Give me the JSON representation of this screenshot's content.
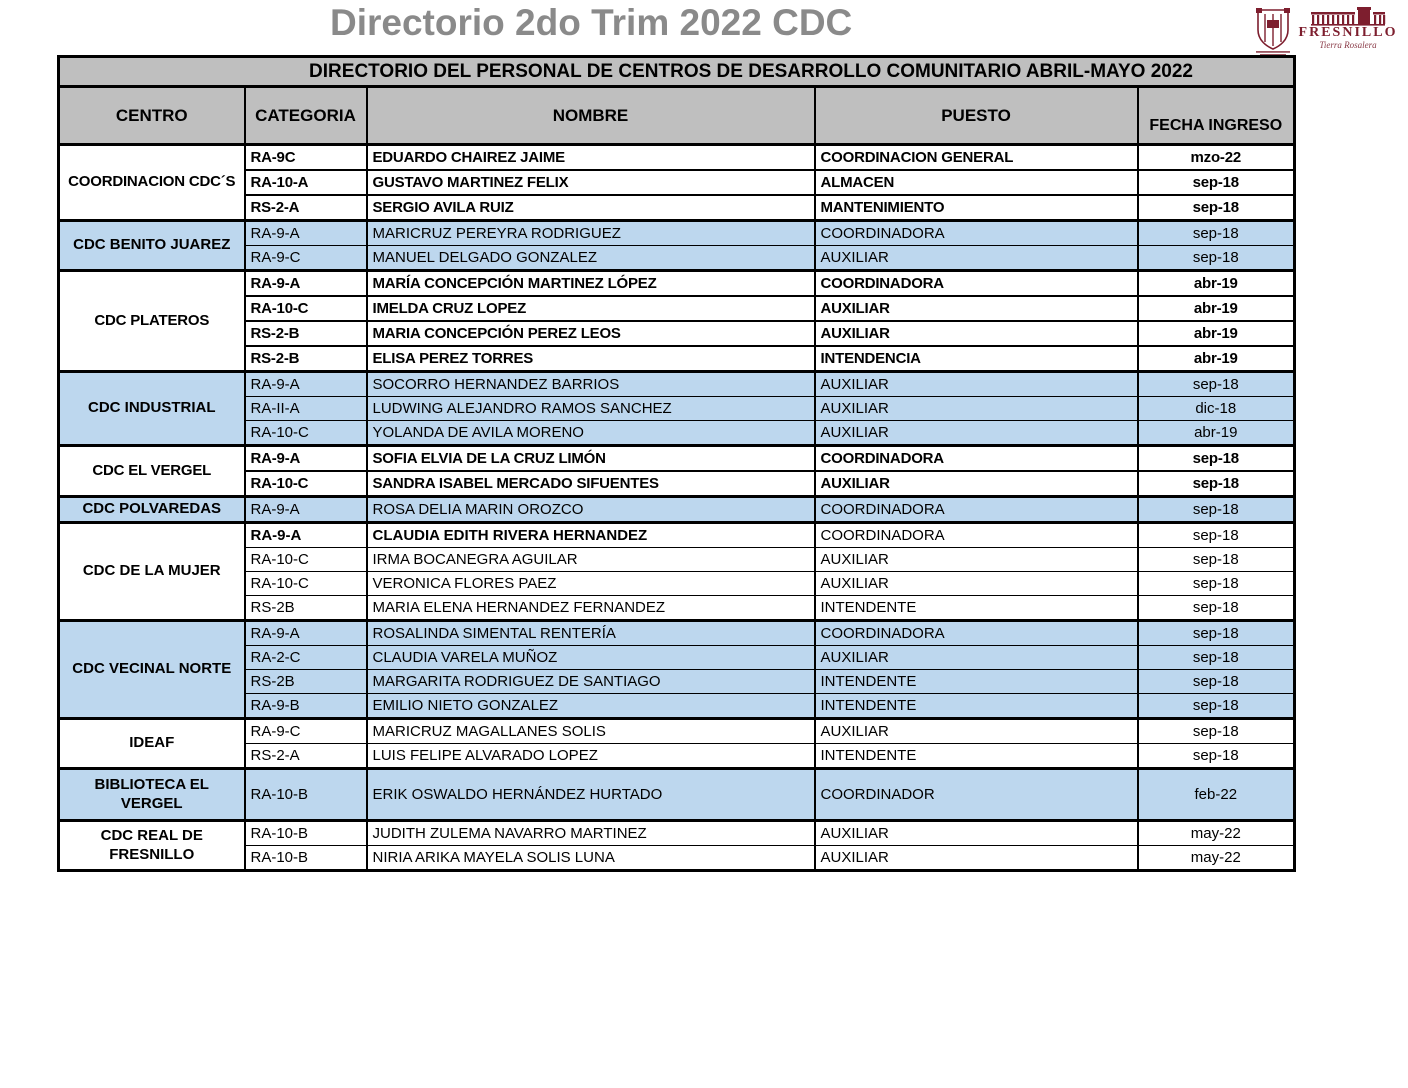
{
  "title": "Directorio 2do Trim 2022 CDC",
  "banner": "DIRECTORIO DEL PERSONAL DE CENTROS DE DESARROLLO COMUNITARIO ABRIL-MAYO 2022",
  "columns": [
    "CENTRO",
    "CATEGORIA",
    "NOMBRE",
    "PUESTO",
    "FECHA INGRESO"
  ],
  "colors": {
    "row_highlight": "#bdd7ee",
    "header_gray": "#bfbfbf",
    "title_gray": "#8a8a8a",
    "logo_maroon": "#7d1e2e"
  },
  "logos": {
    "crest_icon": "crest-shield",
    "fresnillo_wordmark": "FRESNILLO",
    "fresnillo_tagline": "Tierra Rosalera"
  },
  "groups": [
    {
      "center": "COORDINACION CDC´S",
      "bg": "white",
      "weight": "bold",
      "rows": [
        {
          "categoria": "RA-9C",
          "nombre": "EDUARDO CHAIREZ JAIME",
          "puesto": "COORDINACION GENERAL",
          "fecha": "mzo-22"
        },
        {
          "categoria": "RA-10-A",
          "nombre": "GUSTAVO MARTINEZ FELIX",
          "puesto": "ALMACEN",
          "fecha": "sep-18"
        },
        {
          "categoria": "RS-2-A",
          "nombre": "SERGIO AVILA RUIZ",
          "puesto": "MANTENIMIENTO",
          "fecha": "sep-18"
        }
      ]
    },
    {
      "center": "CDC BENITO JUAREZ",
      "bg": "blue",
      "weight": "regular",
      "rows": [
        {
          "categoria": "RA-9-A",
          "nombre": "MARICRUZ PEREYRA RODRIGUEZ",
          "puesto": "COORDINADORA",
          "fecha": "sep-18"
        },
        {
          "categoria": "RA-9-C",
          "nombre": "MANUEL DELGADO GONZALEZ",
          "puesto": "AUXILIAR",
          "fecha": "sep-18"
        }
      ]
    },
    {
      "center": "CDC PLATEROS",
      "bg": "white",
      "weight": "bold",
      "rows": [
        {
          "categoria": "RA-9-A",
          "nombre": "MARÍA CONCEPCIÓN MARTINEZ LÓPEZ",
          "puesto": "COORDINADORA",
          "fecha": "abr-19"
        },
        {
          "categoria": "RA-10-C",
          "nombre": "IMELDA CRUZ LOPEZ",
          "puesto": "AUXILIAR",
          "fecha": "abr-19"
        },
        {
          "categoria": "RS-2-B",
          "nombre": "MARIA CONCEPCIÓN PEREZ LEOS",
          "puesto": "AUXILIAR",
          "fecha": "abr-19"
        },
        {
          "categoria": "RS-2-B",
          "nombre": "ELISA PEREZ TORRES",
          "puesto": "INTENDENCIA",
          "fecha": "abr-19"
        }
      ]
    },
    {
      "center": "CDC INDUSTRIAL",
      "bg": "blue",
      "weight": "regular",
      "rows": [
        {
          "categoria": "RA-9-A",
          "nombre": "SOCORRO HERNANDEZ BARRIOS",
          "puesto": "AUXILIAR",
          "fecha": "sep-18"
        },
        {
          "categoria": "RA-II-A",
          "nombre": "LUDWING ALEJANDRO RAMOS SANCHEZ",
          "puesto": "AUXILIAR",
          "fecha": "dic-18"
        },
        {
          "categoria": "RA-10-C",
          "nombre": "YOLANDA DE AVILA MORENO",
          "puesto": "AUXILIAR",
          "fecha": "abr-19"
        }
      ]
    },
    {
      "center": "CDC EL VERGEL",
      "bg": "white",
      "weight": "bold",
      "rows": [
        {
          "categoria": "RA-9-A",
          "nombre": "SOFIA ELVIA DE LA CRUZ LIMÓN",
          "puesto": "COORDINADORA",
          "fecha": "sep-18"
        },
        {
          "categoria": "RA-10-C",
          "nombre": "SANDRA ISABEL MERCADO SIFUENTES",
          "puesto": "AUXILIAR",
          "fecha": "sep-18"
        }
      ]
    },
    {
      "center": "CDC POLVAREDAS",
      "bg": "blue",
      "weight": "regular",
      "rows": [
        {
          "categoria": "RA-9-A",
          "nombre": "ROSA DELIA MARIN OROZCO",
          "puesto": "COORDINADORA",
          "fecha": "sep-18"
        }
      ]
    },
    {
      "center": "CDC DE LA MUJER",
      "bg": "white",
      "weight": "regular",
      "rows": [
        {
          "categoria": "RA-9-A",
          "nombre": "CLAUDIA EDITH RIVERA HERNANDEZ",
          "puesto": "COORDINADORA",
          "fecha": "sep-18",
          "emphasis": "name"
        },
        {
          "categoria": "RA-10-C",
          "nombre": "IRMA BOCANEGRA AGUILAR",
          "puesto": "AUXILIAR",
          "fecha": "sep-18"
        },
        {
          "categoria": "RA-10-C",
          "nombre": "VERONICA FLORES PAEZ",
          "puesto": "AUXILIAR",
          "fecha": "sep-18"
        },
        {
          "categoria": "RS-2B",
          "nombre": "MARIA ELENA HERNANDEZ FERNANDEZ",
          "puesto": "INTENDENTE",
          "fecha": "sep-18"
        }
      ]
    },
    {
      "center": "CDC VECINAL NORTE",
      "bg": "blue",
      "weight": "regular",
      "rows": [
        {
          "categoria": "RA-9-A",
          "nombre": "ROSALINDA SIMENTAL RENTERÍA",
          "puesto": "COORDINADORA",
          "fecha": "sep-18"
        },
        {
          "categoria": "RA-2-C",
          "nombre": "CLAUDIA VARELA MUÑOZ",
          "puesto": "AUXILIAR",
          "fecha": "sep-18"
        },
        {
          "categoria": "RS-2B",
          "nombre": "MARGARITA RODRIGUEZ DE SANTIAGO",
          "puesto": "INTENDENTE",
          "fecha": "sep-18"
        },
        {
          "categoria": "RA-9-B",
          "nombre": "EMILIO NIETO GONZALEZ",
          "puesto": "INTENDENTE",
          "fecha": "sep-18"
        }
      ]
    },
    {
      "center": "IDEAF",
      "bg": "white",
      "weight": "regular",
      "rows": [
        {
          "categoria": "RA-9-C",
          "nombre": "MARICRUZ MAGALLANES SOLIS",
          "puesto": "AUXILIAR",
          "fecha": "sep-18"
        },
        {
          "categoria": "RS-2-A",
          "nombre": "LUIS FELIPE ALVARADO LOPEZ",
          "puesto": "INTENDENTE",
          "fecha": "sep-18"
        }
      ]
    },
    {
      "center": "BIBLIOTECA EL VERGEL",
      "bg": "blue",
      "weight": "regular",
      "tall": true,
      "rows": [
        {
          "categoria": "RA-10-B",
          "nombre": "ERIK OSWALDO HERNÁNDEZ HURTADO",
          "puesto": "COORDINADOR",
          "fecha": "feb-22"
        }
      ]
    },
    {
      "center": "CDC REAL DE FRESNILLO",
      "bg": "white",
      "weight": "regular",
      "rows": [
        {
          "categoria": "RA-10-B",
          "nombre": "JUDITH ZULEMA NAVARRO MARTINEZ",
          "puesto": "AUXILIAR",
          "fecha": "may-22"
        },
        {
          "categoria": "RA-10-B",
          "nombre": "NIRIA ARIKA MAYELA SOLIS LUNA",
          "puesto": "AUXILIAR",
          "fecha": "may-22"
        }
      ]
    }
  ]
}
